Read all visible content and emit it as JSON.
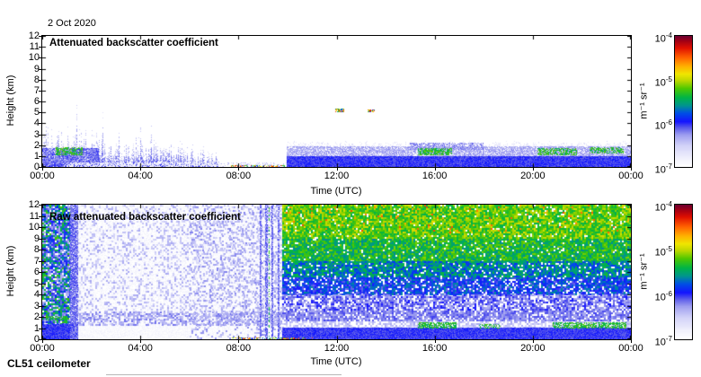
{
  "page": {
    "date_label": "2 Oct 2020",
    "footer": "CL51 ceilometer"
  },
  "colormap": {
    "low_color": "#ffffff",
    "high_color": "#700030",
    "stops": [
      [
        0.0,
        "#ffffff"
      ],
      [
        0.06,
        "#f2f2fc"
      ],
      [
        0.16,
        "#d2d2f8"
      ],
      [
        0.24,
        "#a0a0f0"
      ],
      [
        0.3,
        "#5858ea"
      ],
      [
        0.345,
        "#1414ff"
      ],
      [
        0.41,
        "#0050e6"
      ],
      [
        0.47,
        "#00968c"
      ],
      [
        0.53,
        "#00b446"
      ],
      [
        0.6,
        "#50c800"
      ],
      [
        0.66,
        "#bed800"
      ],
      [
        0.71,
        "#f0e600"
      ],
      [
        0.77,
        "#ffb000"
      ],
      [
        0.84,
        "#ff5f00"
      ],
      [
        0.91,
        "#e01000"
      ],
      [
        0.965,
        "#a00016"
      ],
      [
        1.0,
        "#700030"
      ]
    ]
  },
  "chart_data": [
    {
      "type": "heatmap",
      "id": "attenuated",
      "title": "Attenuated backscatter coefficient",
      "xlabel": "Time (UTC)",
      "ylabel": "Height (km)",
      "x_ticks": [
        "00:00",
        "04:00",
        "08:00",
        "12:00",
        "16:00",
        "20:00",
        "00:00"
      ],
      "x_tick_hours": [
        0,
        4,
        8,
        12,
        16,
        20,
        24
      ],
      "x_range_hours": [
        0,
        24
      ],
      "y_ticks": [
        "0",
        "1",
        "2",
        "3",
        "4",
        "5",
        "6",
        "7",
        "8",
        "9",
        "10",
        "11",
        "12"
      ],
      "y_range_km": [
        0,
        12
      ],
      "grid": false,
      "value_scale": "log10 attenuated backscatter",
      "value_range_log10": [
        -7,
        -4
      ],
      "colorbar": {
        "unit": "m⁻¹ sr⁻¹",
        "tick_exponents": [
          -4,
          -5,
          -6,
          -7
        ]
      },
      "regions": [
        {
          "name": "morning-aerosol-spikes",
          "kind": "spikes",
          "t": [
            0.02,
            7.2
          ],
          "env": [
            3.6,
            1.5
          ],
          "density": 0.95,
          "v": [
            -6.6,
            -6.05
          ]
        },
        {
          "name": "early-low-layer",
          "kind": "speckle",
          "t": [
            0,
            2.3
          ],
          "z": [
            0.25,
            1.7
          ],
          "density": 0.85,
          "v": [
            -6.35,
            -6.0
          ],
          "cell": 1
        },
        {
          "name": "early-green-patch",
          "kind": "speckle",
          "t": [
            0.55,
            1.65
          ],
          "z": [
            1.1,
            1.8
          ],
          "density": 0.6,
          "v": [
            -5.55,
            -5.1
          ],
          "cell": 1
        },
        {
          "name": "early-surface-light",
          "kind": "speckle",
          "t": [
            1.0,
            7.3
          ],
          "z": [
            0,
            0.45
          ],
          "density": 0.7,
          "v": [
            -6.9,
            -6.65
          ],
          "cell": 1
        },
        {
          "name": "midmorning-sparse",
          "kind": "speckle",
          "t": [
            7.2,
            9.95
          ],
          "z": [
            0,
            0.4
          ],
          "density": 0.18,
          "v": [
            -6.6,
            -6.3
          ],
          "cell": 1
        },
        {
          "name": "surface-precip-flecks",
          "kind": "speckle",
          "t": [
            7.7,
            10.1
          ],
          "z": [
            0,
            0.18
          ],
          "density": 0.55,
          "v": [
            -6.1,
            -4.0
          ],
          "cell": 1
        },
        {
          "name": "afternoon-surface-solid",
          "kind": "speckle",
          "t": [
            9.95,
            24
          ],
          "z": [
            0,
            0.95
          ],
          "density": 1,
          "v": [
            -6.15,
            -5.92
          ],
          "cell": 1
        },
        {
          "name": "afternoon-layer",
          "kind": "speckle",
          "t": [
            9.95,
            24
          ],
          "z": [
            0.95,
            1.9
          ],
          "density": 0.8,
          "v": [
            -6.5,
            -6.2
          ],
          "cell": 1
        },
        {
          "name": "afternoon-layer-top-fade",
          "kind": "speckle",
          "t": [
            9.95,
            24
          ],
          "z": [
            1.9,
            2.5
          ],
          "density": 0.3,
          "v": [
            -6.8,
            -6.55
          ],
          "cell": 1,
          "fade": "top"
        },
        {
          "name": "afternoon-bumps",
          "kind": "speckle",
          "t": [
            15,
            18
          ],
          "z": [
            1.6,
            2.2
          ],
          "density": 0.55,
          "v": [
            -6.4,
            -6.1
          ],
          "cell": 1
        },
        {
          "name": "cloudbase-green-1",
          "kind": "speckle",
          "t": [
            15.3,
            16.7
          ],
          "z": [
            1.1,
            1.7
          ],
          "density": 0.7,
          "v": [
            -5.55,
            -5.1
          ],
          "cell": 1
        },
        {
          "name": "cloudbase-green-2",
          "kind": "speckle",
          "t": [
            20.2,
            21.8
          ],
          "z": [
            1.1,
            1.7
          ],
          "density": 0.6,
          "v": [
            -5.55,
            -5.1
          ],
          "cell": 1
        },
        {
          "name": "cloudbase-green-3",
          "kind": "speckle",
          "t": [
            22.3,
            23.7
          ],
          "z": [
            1.2,
            1.8
          ],
          "density": 0.6,
          "v": [
            -5.55,
            -5.1
          ],
          "cell": 1
        },
        {
          "name": "midlevel-cloud-1",
          "kind": "speckle",
          "t": [
            11.95,
            12.3
          ],
          "z": [
            5.0,
            5.35
          ],
          "density": 0.75,
          "v": [
            -6.0,
            -4.2
          ],
          "cell": 1
        },
        {
          "name": "midlevel-cloud-2",
          "kind": "speckle",
          "t": [
            13.25,
            13.55
          ],
          "z": [
            5.05,
            5.3
          ],
          "density": 0.75,
          "v": [
            -6.0,
            -4.2
          ],
          "cell": 1
        }
      ]
    },
    {
      "type": "heatmap",
      "id": "raw",
      "title": "Raw attenuated backscatter coefficient",
      "xlabel": "Time (UTC)",
      "ylabel": "Height (km)",
      "x_ticks": [
        "00:00",
        "04:00",
        "08:00",
        "12:00",
        "16:00",
        "20:00",
        "00:00"
      ],
      "x_tick_hours": [
        0,
        4,
        8,
        12,
        16,
        20,
        24
      ],
      "x_range_hours": [
        0,
        24
      ],
      "y_ticks": [
        "0",
        "1",
        "2",
        "3",
        "4",
        "5",
        "6",
        "7",
        "8",
        "9",
        "10",
        "11",
        "12"
      ],
      "y_range_km": [
        0,
        12
      ],
      "grid": false,
      "value_scale": "log10 raw attenuated backscatter",
      "value_range_log10": [
        -7,
        -4
      ],
      "colorbar": {
        "unit": "m⁻¹ sr⁻¹",
        "tick_exponents": [
          -4,
          -5,
          -6,
          -7
        ]
      },
      "regions": [
        {
          "name": "night-wash",
          "kind": "speckle",
          "t": [
            1.42,
            9.78
          ],
          "z": [
            0,
            12
          ],
          "density": 0.5,
          "v": [
            -6.95,
            -6.78
          ],
          "cell": 1
        },
        {
          "name": "night-surface-light",
          "kind": "speckle",
          "t": [
            1.42,
            6
          ],
          "z": [
            0,
            1.25
          ],
          "density": 0.5,
          "v": [
            -6.98,
            -6.85
          ],
          "cell": 1
        },
        {
          "name": "night-speckle",
          "kind": "speckle",
          "t": [
            1.42,
            9.78
          ],
          "z": [
            1.3,
            12
          ],
          "density": 0.28,
          "v": [
            -6.6,
            -6.3
          ],
          "cell": 2
        },
        {
          "name": "night-lower-layer",
          "kind": "speckle",
          "t": [
            1.42,
            9.78
          ],
          "z": [
            1.2,
            2.5
          ],
          "density": 0.5,
          "v": [
            -6.45,
            -6.15
          ],
          "cell": 2
        },
        {
          "name": "predawn-densify",
          "kind": "speckle",
          "t": [
            6,
            9.78
          ],
          "z": [
            0,
            12
          ],
          "density": 0.22,
          "v": [
            -6.5,
            -6.2
          ],
          "cell": 2
        },
        {
          "name": "dusk-noise-column-green",
          "kind": "speckle",
          "t": [
            0,
            1.15
          ],
          "z": [
            1.3,
            12
          ],
          "density": 0.85,
          "v": [
            -6.0,
            -5.2
          ],
          "cell": 2
        },
        {
          "name": "dusk-noise-column-blue",
          "kind": "speckle",
          "t": [
            0,
            1.15
          ],
          "z": [
            1.3,
            12
          ],
          "density": 0.4,
          "v": [
            -6.4,
            -6.0
          ],
          "cell": 2
        },
        {
          "name": "dusk-surface-solid",
          "kind": "speckle",
          "t": [
            0,
            1.45
          ],
          "z": [
            0,
            1.35
          ],
          "density": 1,
          "v": [
            -6.15,
            -5.9
          ],
          "cell": 1
        },
        {
          "name": "dusk-green-sliver",
          "kind": "speckle",
          "t": [
            0.15,
            1.0
          ],
          "z": [
            1.7,
            2.1
          ],
          "density": 0.7,
          "v": [
            -5.5,
            -5.2
          ],
          "cell": 1
        },
        {
          "name": "dark-blue-stripe",
          "kind": "speckle",
          "t": [
            1.15,
            1.45
          ],
          "z": [
            0,
            12
          ],
          "density": 0.9,
          "v": [
            -6.35,
            -6.0
          ],
          "cell": 1
        },
        {
          "name": "morning-stripe-1",
          "kind": "speckle",
          "t": [
            8.85,
            8.93
          ],
          "z": [
            0,
            12
          ],
          "density": 0.75,
          "v": [
            -6.3,
            -6.0
          ],
          "cell": 1
        },
        {
          "name": "morning-stripe-2",
          "kind": "speckle",
          "t": [
            9.1,
            9.18
          ],
          "z": [
            0,
            12
          ],
          "density": 0.75,
          "v": [
            -6.3,
            -6.0
          ],
          "cell": 1
        },
        {
          "name": "morning-stripe-3",
          "kind": "speckle",
          "t": [
            9.35,
            9.43
          ],
          "z": [
            0,
            12
          ],
          "density": 0.75,
          "v": [
            -6.3,
            -6.0
          ],
          "cell": 1
        },
        {
          "name": "morning-stripe-4",
          "kind": "speckle",
          "t": [
            9.6,
            9.68
          ],
          "z": [
            0,
            12
          ],
          "density": 0.75,
          "v": [
            -6.3,
            -6.0
          ],
          "cell": 1
        },
        {
          "name": "morning-green-line",
          "kind": "speckle",
          "t": [
            9.22,
            9.27
          ],
          "z": [
            0,
            12
          ],
          "density": 0.4,
          "v": [
            -5.5,
            -5.2
          ],
          "cell": 1
        },
        {
          "name": "day-noise-top",
          "kind": "speckle",
          "t": [
            9.78,
            24
          ],
          "z": [
            9,
            12
          ],
          "density": 0.95,
          "v": [
            -5.45,
            -4.95
          ],
          "cell": 2
        },
        {
          "name": "day-noise-high",
          "kind": "speckle",
          "t": [
            9.78,
            24
          ],
          "z": [
            7,
            9
          ],
          "density": 0.95,
          "v": [
            -5.65,
            -5.1
          ],
          "cell": 2
        },
        {
          "name": "day-noise-upper-mid",
          "kind": "speckle",
          "t": [
            9.78,
            24
          ],
          "z": [
            5.5,
            7
          ],
          "density": 0.9,
          "v": [
            -5.9,
            -5.35
          ],
          "cell": 2
        },
        {
          "name": "day-noise-mid",
          "kind": "speckle",
          "t": [
            9.78,
            24
          ],
          "z": [
            4,
            5.5
          ],
          "density": 0.85,
          "v": [
            -6.15,
            -5.6
          ],
          "cell": 2
        },
        {
          "name": "day-noise-low",
          "kind": "speckle",
          "t": [
            9.78,
            24
          ],
          "z": [
            2.6,
            4
          ],
          "density": 0.75,
          "v": [
            -6.4,
            -5.95
          ],
          "cell": 2
        },
        {
          "name": "day-layer",
          "kind": "speckle",
          "t": [
            9.78,
            24
          ],
          "z": [
            1.6,
            2.6
          ],
          "density": 0.8,
          "v": [
            -6.35,
            -6.05
          ],
          "cell": 2
        },
        {
          "name": "day-gap-band",
          "kind": "speckle",
          "t": [
            9.78,
            24
          ],
          "z": [
            1.05,
            1.6
          ],
          "density": 0.55,
          "v": [
            -6.6,
            -6.3
          ],
          "cell": 2
        },
        {
          "name": "day-surface-solid",
          "kind": "speckle",
          "t": [
            9.78,
            24
          ],
          "z": [
            0,
            1.05
          ],
          "density": 1,
          "v": [
            -6.15,
            -5.92
          ],
          "cell": 1
        },
        {
          "name": "day-hot-flecks",
          "kind": "speckle",
          "t": [
            9.78,
            24
          ],
          "z": [
            9.5,
            12
          ],
          "density": 0.05,
          "v": [
            -4.9,
            -4.4
          ],
          "cell": 2
        },
        {
          "name": "surface-precip-flecks",
          "kind": "speckle",
          "t": [
            7.7,
            11.1
          ],
          "z": [
            0,
            0.15
          ],
          "density": 0.5,
          "v": [
            -6.1,
            -4.0
          ],
          "cell": 1
        },
        {
          "name": "cloudbase-green-1",
          "kind": "speckle",
          "t": [
            15.3,
            16.9
          ],
          "z": [
            0.95,
            1.5
          ],
          "density": 0.7,
          "v": [
            -5.55,
            -5.15
          ],
          "cell": 1
        },
        {
          "name": "cloudbase-green-2",
          "kind": "speckle",
          "t": [
            17.8,
            18.7
          ],
          "z": [
            0.95,
            1.4
          ],
          "density": 0.45,
          "v": [
            -5.55,
            -5.15
          ],
          "cell": 1
        },
        {
          "name": "cloudbase-green-3",
          "kind": "speckle",
          "t": [
            20.8,
            23.8
          ],
          "z": [
            0.95,
            1.5
          ],
          "density": 0.65,
          "v": [
            -5.55,
            -5.15
          ],
          "cell": 1
        }
      ]
    }
  ]
}
